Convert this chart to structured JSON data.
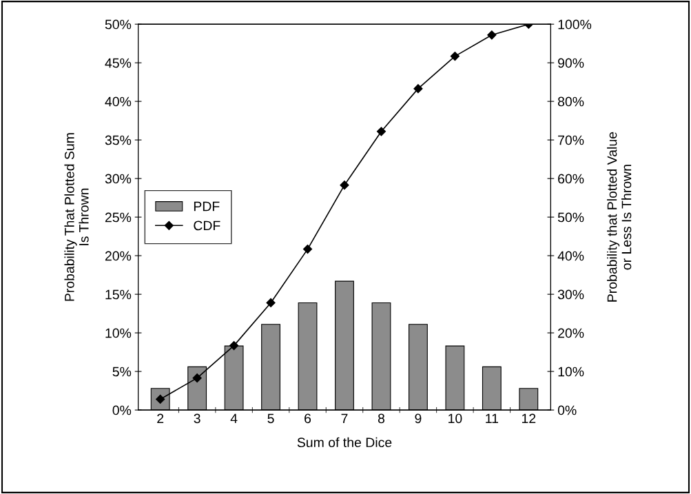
{
  "chart_data": {
    "type": "bar",
    "xlabel": "Sum of the Dice",
    "ylabel": "Probability That Plotted Sum\nIs Thrown",
    "y2label": "Probability that Plotted Value\nor Less Is Thrown",
    "categories": [
      "2",
      "3",
      "4",
      "5",
      "6",
      "7",
      "8",
      "9",
      "10",
      "11",
      "12"
    ],
    "series": [
      {
        "name": "PDF",
        "color": "#8c8c8c",
        "values": [
          2.8,
          5.6,
          8.3,
          11.1,
          13.9,
          16.7,
          13.9,
          11.1,
          8.3,
          5.6,
          2.8
        ]
      },
      {
        "name": "CDF",
        "type": "line",
        "axis": "y2",
        "color": "#000000",
        "marker": "diamond",
        "values": [
          2.8,
          8.3,
          16.7,
          27.8,
          41.7,
          58.3,
          72.2,
          83.3,
          91.7,
          97.2,
          100
        ]
      }
    ],
    "ylim": [
      0,
      50
    ],
    "yticks": [
      {
        "value": 0,
        "label": "0%"
      },
      {
        "value": 5,
        "label": "5%"
      },
      {
        "value": 10,
        "label": "10%"
      },
      {
        "value": 15,
        "label": "15%"
      },
      {
        "value": 20,
        "label": "20%"
      },
      {
        "value": 25,
        "label": "25%"
      },
      {
        "value": 30,
        "label": "30%"
      },
      {
        "value": 35,
        "label": "35%"
      },
      {
        "value": 40,
        "label": "40%"
      },
      {
        "value": 45,
        "label": "45%"
      },
      {
        "value": 50,
        "label": "50%"
      }
    ],
    "y2lim": [
      0,
      100
    ],
    "y2ticks": [
      {
        "value": 0,
        "label": "0%"
      },
      {
        "value": 10,
        "label": "10%"
      },
      {
        "value": 20,
        "label": "20%"
      },
      {
        "value": 30,
        "label": "30%"
      },
      {
        "value": 40,
        "label": "40%"
      },
      {
        "value": 50,
        "label": "50%"
      },
      {
        "value": 60,
        "label": "60%"
      },
      {
        "value": 70,
        "label": "70%"
      },
      {
        "value": 80,
        "label": "80%"
      },
      {
        "value": 90,
        "label": "90%"
      },
      {
        "value": 100,
        "label": "100%"
      }
    ],
    "grid": false,
    "legend": "center left"
  }
}
